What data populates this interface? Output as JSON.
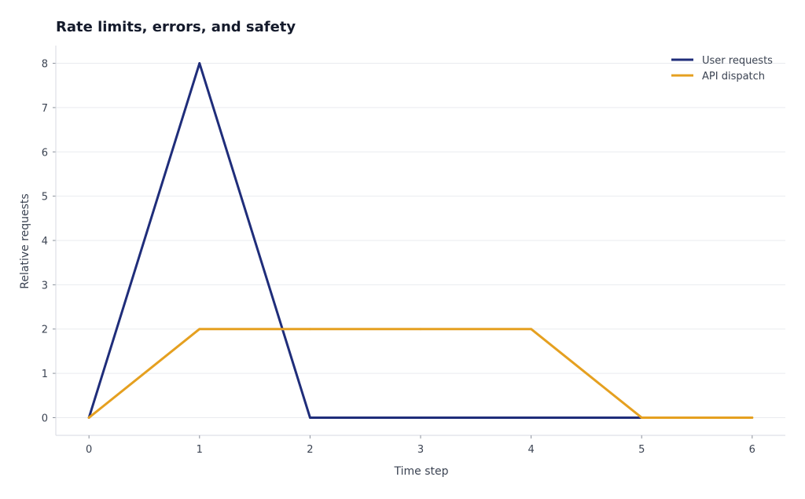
{
  "chart_data": {
    "type": "line",
    "title": "Rate limits, errors, and safety",
    "xlabel": "Time step",
    "ylabel": "Relative requests",
    "x": [
      0,
      1,
      2,
      3,
      4,
      5,
      6
    ],
    "xlim": [
      -0.3,
      6.3
    ],
    "ylim": [
      -0.4,
      8.4
    ],
    "x_ticks": [
      0,
      1,
      2,
      3,
      4,
      5,
      6
    ],
    "y_ticks": [
      0,
      1,
      2,
      3,
      4,
      5,
      6,
      7,
      8
    ],
    "grid": "horizontal",
    "legend_position": "top-right",
    "series": [
      {
        "name": "User requests",
        "color": "#1f2d7a",
        "points": [
          [
            0,
            0
          ],
          [
            1,
            8
          ],
          [
            2,
            0
          ],
          [
            3,
            0
          ],
          [
            4,
            0
          ],
          [
            5,
            0
          ]
        ]
      },
      {
        "name": "API dispatch",
        "color": "#e5a020",
        "points": [
          [
            0,
            0
          ],
          [
            1,
            2
          ],
          [
            2,
            2
          ],
          [
            3,
            2
          ],
          [
            4,
            2
          ],
          [
            5,
            0
          ],
          [
            6,
            0
          ]
        ]
      }
    ]
  }
}
